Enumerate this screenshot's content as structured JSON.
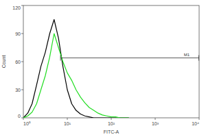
{
  "chart_data": {
    "type": "line",
    "x_label": "FITC-A",
    "y_label": "Count",
    "log": "x",
    "xlim": [
      1,
      10000
    ],
    "xticks": [
      {
        "value": 1,
        "label": "10⁰"
      },
      {
        "value": 10,
        "label": "10¹"
      },
      {
        "value": 100,
        "label": "10²"
      },
      {
        "value": 1000,
        "label": "10³"
      },
      {
        "value": 10000,
        "label": "10⁴"
      }
    ],
    "ylim": [
      0,
      120
    ],
    "yticks": [
      0,
      30,
      60,
      90,
      120
    ],
    "grid": false,
    "x": [
      1,
      1.26,
      1.58,
      2,
      2.51,
      3.16,
      3.98,
      5.01,
      6.31,
      7.94,
      10,
      12.6,
      15.8,
      20,
      25.1,
      31.6,
      39.8,
      50.1,
      63.1,
      79.4,
      100,
      126,
      158,
      200,
      251
    ],
    "series": [
      {
        "color": "#000000",
        "values": [
          0,
          5,
          15,
          35,
          55,
          70,
          90,
          105,
          85,
          55,
          30,
          15,
          8,
          4,
          2,
          1,
          0,
          0,
          0,
          0,
          0,
          0,
          0,
          0,
          0
        ]
      },
      {
        "color": "#22dd22",
        "values": [
          0,
          2,
          6,
          15,
          30,
          45,
          65,
          90,
          75,
          60,
          48,
          40,
          30,
          22,
          16,
          11,
          8,
          5,
          3,
          2,
          1,
          1,
          0,
          0,
          0
        ]
      }
    ],
    "gate": {
      "label": "M1",
      "x": [
        7,
        10000
      ],
      "y": 64
    }
  }
}
